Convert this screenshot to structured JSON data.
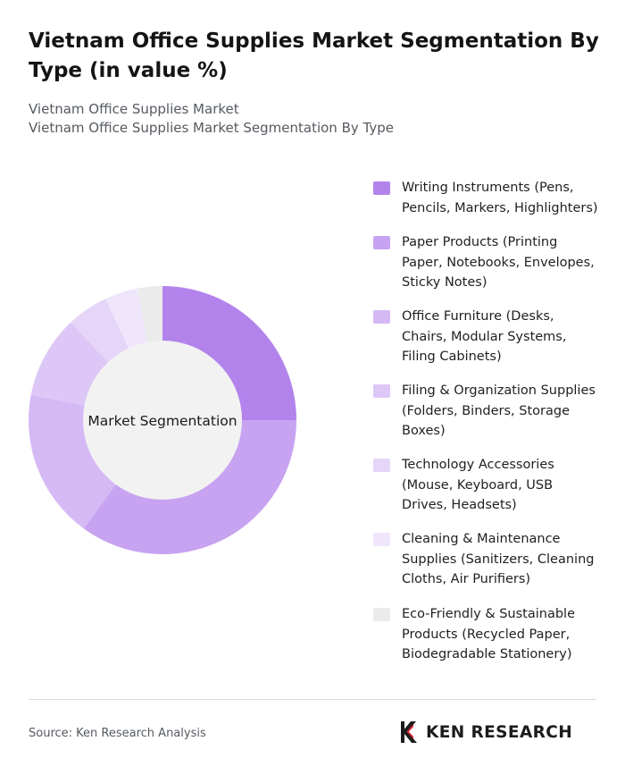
{
  "title": "Vietnam Office Supplies Market Segmentation By Type (in value %)",
  "subtitles": [
    "Vietnam Office Supplies Market",
    "Vietnam Office Supplies Market Segmentation By Type"
  ],
  "chart_data": {
    "type": "pie",
    "style": "donut",
    "center_label": "Market Segmentation",
    "categories": [
      "Writing Instruments (Pens, Pencils, Markers, Highlighters)",
      "Paper Products (Printing Paper, Notebooks, Envelopes, Sticky Notes)",
      "Office Furniture (Desks, Chairs, Modular Systems, Filing Cabinets)",
      "Filing & Organization Supplies (Folders, Binders, Storage Boxes)",
      "Technology Accessories (Mouse, Keyboard, USB Drives, Headsets)",
      "Cleaning & Maintenance Supplies (Sanitizers, Cleaning Cloths, Air Purifiers)",
      "Eco-Friendly & Sustainable Products (Recycled Paper, Biodegradable Stationery)"
    ],
    "values": [
      25,
      35,
      18,
      10,
      5,
      4,
      3
    ],
    "colors": [
      "#b383ec",
      "#c7a3f1",
      "#d5b9f5",
      "#ddc7f7",
      "#e5d5f8",
      "#efe6fb",
      "#ebebeb"
    ],
    "legend_position": "right"
  },
  "source": "Source: Ken Research Analysis",
  "logo_text": "KEN RESEARCH"
}
